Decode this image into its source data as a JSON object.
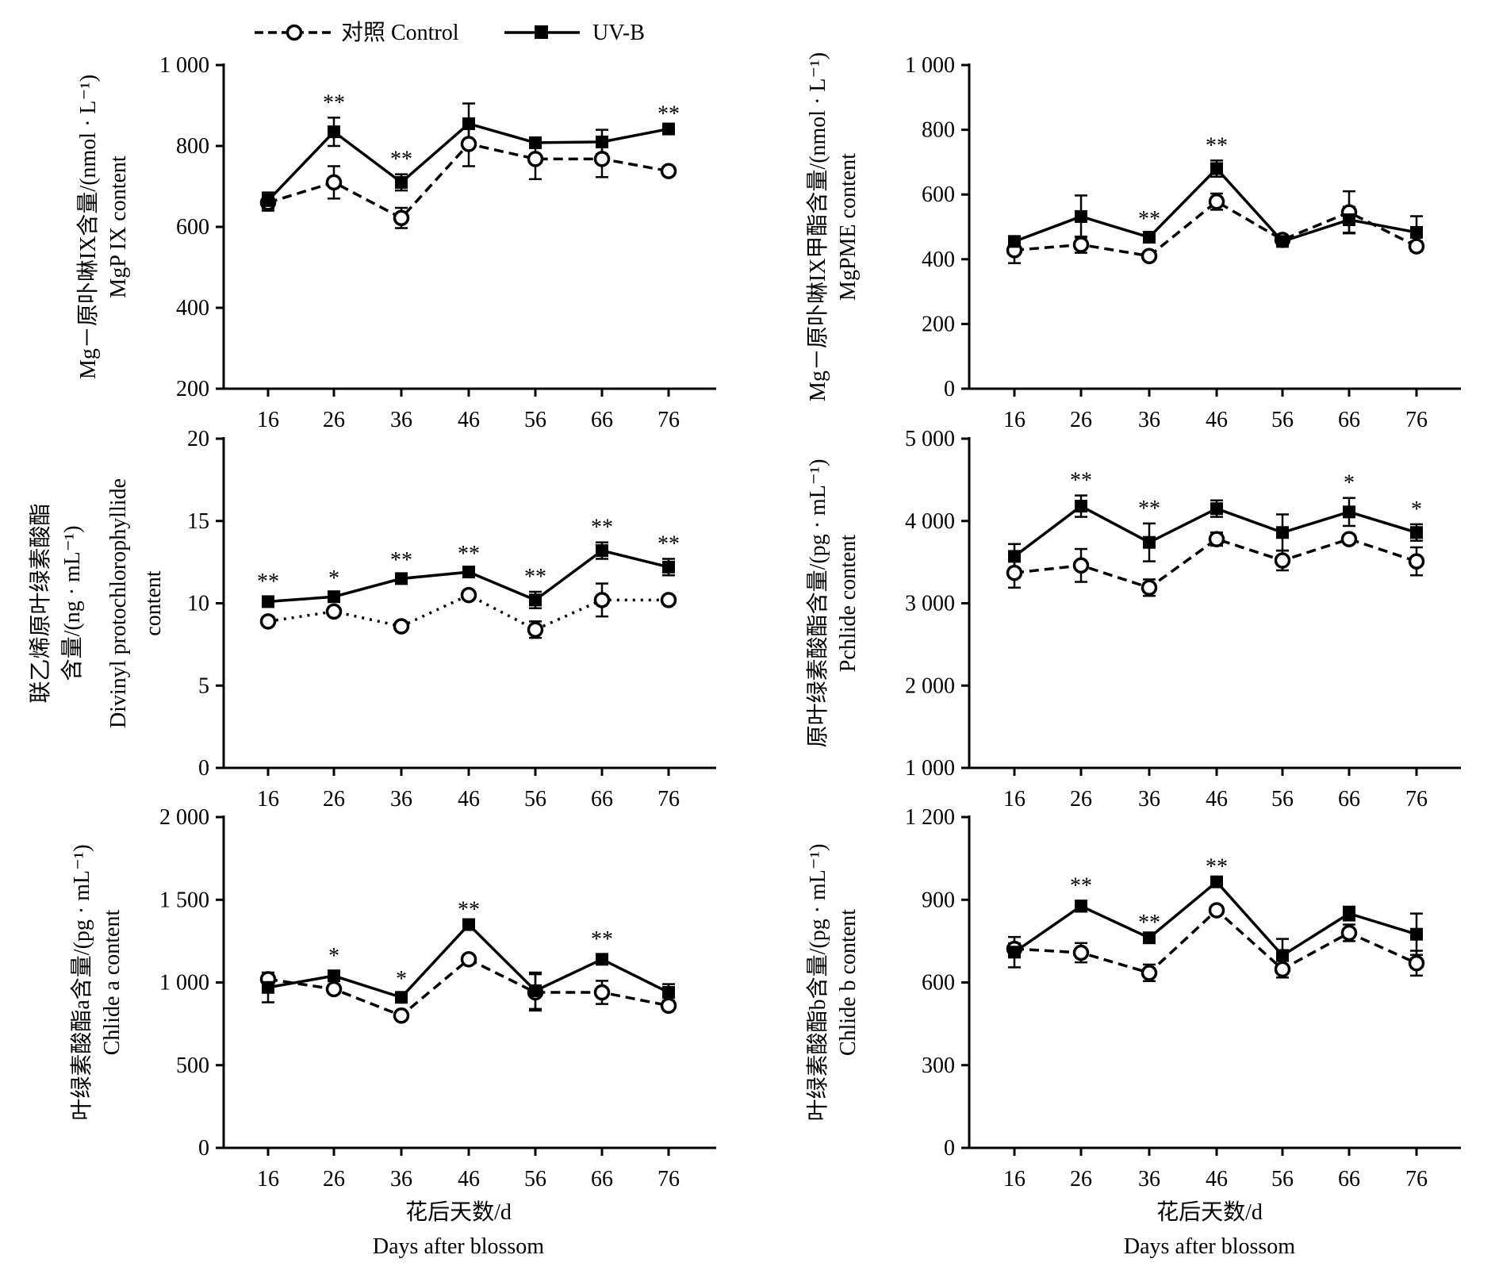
{
  "legend": [
    {
      "label": "对照 Control",
      "style": "dashed",
      "marker": "open-circle"
    },
    {
      "label": "UV-B",
      "style": "solid",
      "marker": "filled-square"
    }
  ],
  "x_axis": {
    "label_cn": "花后天数/d",
    "label_en": "Days after blossom",
    "ticks": [
      "16",
      "26",
      "36",
      "46",
      "56",
      "66",
      "76"
    ]
  },
  "chart_data": [
    {
      "type": "line",
      "ylabel": [
        "Mg－原卟啉IX含量/(nmol · L⁻¹)",
        "MgP IX content"
      ],
      "ylim": [
        200,
        1000
      ],
      "yticks": [
        200,
        400,
        600,
        800,
        1000
      ],
      "ytick_labels": [
        "200",
        "400",
        "600",
        "800",
        "1 000"
      ],
      "x": [
        16,
        26,
        36,
        46,
        56,
        66,
        76
      ],
      "series": [
        {
          "name": "对照 Control",
          "values": [
            660,
            710,
            622,
            805,
            768,
            768,
            738
          ],
          "errors": [
            20,
            40,
            25,
            55,
            50,
            45,
            0
          ]
        },
        {
          "name": "UV-B",
          "values": [
            665,
            835,
            710,
            855,
            808,
            810,
            842
          ],
          "errors": [
            20,
            35,
            20,
            50,
            0,
            30,
            0
          ]
        }
      ],
      "annotations": [
        "",
        "**",
        "**",
        "",
        "",
        "",
        "**"
      ]
    },
    {
      "type": "line",
      "ylabel": [
        "Mg－原卟啉IX甲酯含量/(nmol · L⁻¹)",
        "MgPME content"
      ],
      "ylim": [
        0,
        1000
      ],
      "yticks": [
        0,
        200,
        400,
        600,
        800,
        1000
      ],
      "ytick_labels": [
        "0",
        "200",
        "400",
        "600",
        "800",
        "1 000"
      ],
      "x": [
        16,
        26,
        36,
        46,
        56,
        66,
        76
      ],
      "series": [
        {
          "name": "对照 Control",
          "values": [
            428,
            445,
            410,
            578,
            460,
            545,
            440
          ],
          "errors": [
            40,
            25,
            10,
            25,
            10,
            65,
            15
          ]
        },
        {
          "name": "UV-B",
          "values": [
            455,
            532,
            468,
            680,
            455,
            522,
            483
          ],
          "errors": [
            15,
            65,
            10,
            25,
            10,
            40,
            50
          ]
        }
      ],
      "annotations": [
        "",
        "",
        "**",
        "**",
        "",
        "",
        ""
      ]
    },
    {
      "type": "line",
      "ylabel": [
        "联乙烯原叶绿素酸酯",
        "含量/(ng · mL⁻¹)",
        "Divinyl protochlorophyllide",
        "content"
      ],
      "ylim": [
        0,
        20
      ],
      "yticks": [
        0,
        5,
        10,
        15,
        20
      ],
      "ytick_labels": [
        "0",
        "5",
        "10",
        "15",
        "20"
      ],
      "x": [
        16,
        26,
        36,
        46,
        56,
        66,
        76
      ],
      "series": [
        {
          "name": "对照 Control",
          "values": [
            8.9,
            9.5,
            8.6,
            10.5,
            8.4,
            10.2,
            10.2
          ],
          "errors": [
            0,
            0.2,
            0,
            0,
            0.5,
            1.0,
            0
          ]
        },
        {
          "name": "UV-B",
          "values": [
            10.1,
            10.4,
            11.5,
            11.9,
            10.2,
            13.2,
            12.2
          ],
          "errors": [
            0.3,
            0.2,
            0.2,
            0.2,
            0.5,
            0.5,
            0.5
          ]
        }
      ],
      "annotations": [
        "**",
        "*",
        "**",
        "**",
        "**",
        "**",
        "**"
      ]
    },
    {
      "type": "line",
      "ylabel": [
        "原叶绿素酸酯含量/(pg · mL⁻¹)",
        "Pchlide content"
      ],
      "ylim": [
        1000,
        5000
      ],
      "yticks": [
        1000,
        2000,
        3000,
        4000,
        5000
      ],
      "ytick_labels": [
        "1 000",
        "2 000",
        "3 000",
        "4 000",
        "5 000"
      ],
      "x": [
        16,
        26,
        36,
        46,
        56,
        66,
        76
      ],
      "series": [
        {
          "name": "对照 Control",
          "values": [
            3370,
            3460,
            3190,
            3780,
            3520,
            3780,
            3510
          ],
          "errors": [
            180,
            200,
            100,
            80,
            120,
            0,
            170
          ]
        },
        {
          "name": "UV-B",
          "values": [
            3570,
            4180,
            3740,
            4150,
            3860,
            4110,
            3860
          ],
          "errors": [
            150,
            130,
            230,
            100,
            220,
            170,
            100
          ]
        }
      ],
      "annotations": [
        "",
        "**",
        "**",
        "",
        "",
        "*",
        "*"
      ]
    },
    {
      "type": "line",
      "ylabel": [
        "叶绿素酸酯a含量/(pg · mL⁻¹)",
        "Chlide a content"
      ],
      "ylim": [
        0,
        2000
      ],
      "yticks": [
        0,
        500,
        1000,
        1500,
        2000
      ],
      "ytick_labels": [
        "0",
        "500",
        "1 000",
        "1 500",
        "2 000"
      ],
      "x": [
        16,
        26,
        36,
        46,
        56,
        66,
        76
      ],
      "series": [
        {
          "name": "对照 Control",
          "values": [
            1020,
            960,
            800,
            1140,
            940,
            940,
            860
          ],
          "errors": [
            0,
            20,
            0,
            0,
            110,
            70,
            0
          ]
        },
        {
          "name": "UV-B",
          "values": [
            970,
            1040,
            910,
            1350,
            950,
            1140,
            940
          ],
          "errors": [
            90,
            30,
            20,
            0,
            110,
            30,
            50
          ]
        }
      ],
      "annotations": [
        "",
        "*",
        "*",
        "**",
        "",
        "**",
        ""
      ]
    },
    {
      "type": "line",
      "ylabel": [
        "叶绿素酸酯b含量/(pg · mL⁻¹)",
        "Chlide b content"
      ],
      "ylim": [
        0,
        1200
      ],
      "yticks": [
        0,
        300,
        600,
        900,
        1200
      ],
      "ytick_labels": [
        "0",
        "300",
        "600",
        "900",
        "1 200"
      ],
      "x": [
        16,
        26,
        36,
        46,
        56,
        66,
        76
      ],
      "series": [
        {
          "name": "对照 Control",
          "values": [
            722,
            708,
            635,
            862,
            648,
            780,
            670
          ],
          "errors": [
            20,
            35,
            30,
            0,
            30,
            30,
            45
          ]
        },
        {
          "name": "UV-B",
          "values": [
            710,
            877,
            762,
            965,
            698,
            850,
            775
          ],
          "errors": [
            55,
            20,
            0,
            0,
            60,
            25,
            75
          ]
        }
      ],
      "annotations": [
        "",
        "**",
        "**",
        "**",
        "",
        "",
        ""
      ]
    }
  ]
}
